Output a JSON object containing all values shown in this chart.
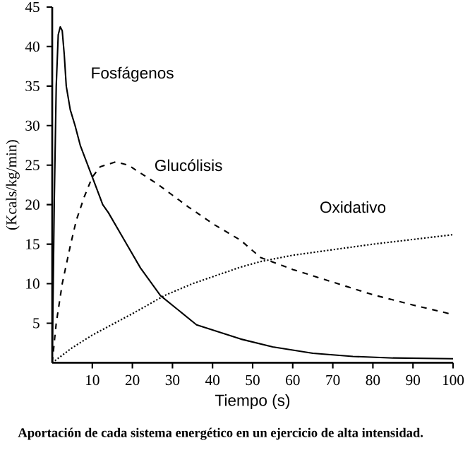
{
  "chart_data": {
    "type": "line",
    "xlabel": "Tiempo (s)",
    "ylabel": "(Kcals/kg/min)",
    "annotations": [
      "Aportación de cada sistema energético en un ejercicio de alta intensidad."
    ],
    "xlim": [
      0,
      100
    ],
    "ylim": [
      0,
      45
    ],
    "xticks": [
      10,
      20,
      30,
      40,
      50,
      60,
      70,
      80,
      90,
      100
    ],
    "yticks": [
      5,
      10,
      15,
      20,
      25,
      30,
      35,
      40,
      45
    ],
    "grid": false,
    "legend": false,
    "marker": "none",
    "series": [
      {
        "name": "Fosfágenos",
        "color": "#000000",
        "line_style": "solid",
        "x": [
          0,
          0.5,
          1,
          1.5,
          2,
          2.5,
          3,
          3.5,
          4.5,
          5.7,
          7,
          10,
          12.6,
          14,
          18,
          22,
          27,
          36,
          47,
          55,
          65,
          75,
          85,
          100
        ],
        "values": [
          0,
          20,
          35,
          41.5,
          42.5,
          42,
          39,
          35,
          32,
          30,
          27.5,
          23.5,
          20,
          19,
          15.5,
          12,
          8.5,
          4.8,
          3,
          2,
          1.2,
          0.8,
          0.6,
          0.5
        ]
      },
      {
        "name": "Glucólisis",
        "color": "#000000",
        "line_style": "dashed",
        "x": [
          0,
          1,
          2.5,
          4.6,
          6,
          8,
          10,
          12,
          15.8,
          19,
          22,
          26,
          30,
          34,
          40,
          47,
          52,
          60,
          70,
          80,
          90,
          100
        ],
        "values": [
          0,
          5,
          10,
          15,
          18,
          21,
          23.5,
          24.8,
          25.4,
          25,
          24,
          22.7,
          21.2,
          19.7,
          17.6,
          15.5,
          13.3,
          11.8,
          10.2,
          8.6,
          7.3,
          6.1
        ]
      },
      {
        "name": "Oxidativo",
        "color": "#000000",
        "line_style": "dotted",
        "x": [
          0,
          5,
          10,
          20,
          28,
          35,
          47,
          52,
          60,
          70,
          80,
          90,
          100
        ],
        "values": [
          0,
          1.9,
          3.5,
          6.2,
          8.5,
          10,
          12.1,
          12.8,
          13.6,
          14.3,
          15,
          15.6,
          16.2
        ]
      }
    ]
  }
}
